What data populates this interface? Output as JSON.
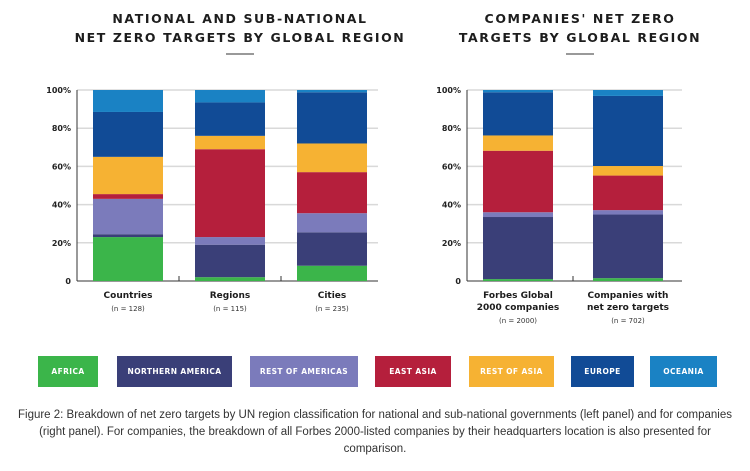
{
  "colors": {
    "Africa": "#3bb54a",
    "Northern America": "#3a3f78",
    "Rest of Americas": "#7b7bbb",
    "East Asia": "#b51f3c",
    "Rest of Asia": "#f6b233",
    "Europe": "#114b96",
    "Oceania": "#1a82c4"
  },
  "legend": [
    {
      "label": "AFRICA",
      "color": "#3bb54a"
    },
    {
      "label": "NORTHERN AMERICA",
      "color": "#3a3f78"
    },
    {
      "label": "REST OF AMERICAS",
      "color": "#7b7bbb"
    },
    {
      "label": "EAST ASIA",
      "color": "#b51f3c"
    },
    {
      "label": "REST OF ASIA",
      "color": "#f6b233"
    },
    {
      "label": "EUROPE",
      "color": "#114b96"
    },
    {
      "label": "OCEANIA",
      "color": "#1a82c4"
    }
  ],
  "caption": "Figure 2: Breakdown of net zero targets by UN region classification for national and sub-national governments (left panel) and for companies (right panel). For companies, the breakdown of all Forbes 2000-listed companies by their headquarters location is also presented for comparison.",
  "chart_data": [
    {
      "type": "bar",
      "stacked": true,
      "title_lines": [
        "NATIONAL AND SUB-NATIONAL",
        "NET ZERO TARGETS BY GLOBAL REGION"
      ],
      "categories": [
        "Countries",
        "Regions",
        "Cities"
      ],
      "category_notes": [
        "(n = 128)",
        "(n = 115)",
        "(n = 235)"
      ],
      "yticks": [
        "0",
        "20%",
        "40%",
        "60%",
        "80%",
        "100%"
      ],
      "ylim": [
        0,
        100
      ],
      "grid": true,
      "series": [
        {
          "name": "Africa",
          "values": [
            23,
            2,
            8
          ]
        },
        {
          "name": "Northern America",
          "values": [
            1.5,
            17,
            17.5
          ]
        },
        {
          "name": "Rest of Americas",
          "values": [
            18.5,
            4,
            10
          ]
        },
        {
          "name": "East Asia",
          "values": [
            2.5,
            46,
            21.5
          ]
        },
        {
          "name": "Rest of Asia",
          "values": [
            19.5,
            7,
            15
          ]
        },
        {
          "name": "Europe",
          "values": [
            23.5,
            17.5,
            26.8
          ]
        },
        {
          "name": "Oceania",
          "values": [
            11.5,
            6.5,
            1.2
          ]
        }
      ]
    },
    {
      "type": "bar",
      "stacked": true,
      "title_lines": [
        "COMPANIES' NET ZERO",
        "TARGETS BY GLOBAL REGION"
      ],
      "categories": [
        "Forbes Global 2000 companies",
        "Companies with net zero targets"
      ],
      "category_lines": [
        [
          "Forbes Global",
          "2000 companies"
        ],
        [
          "Companies with",
          "net zero targets"
        ]
      ],
      "category_notes": [
        "(n = 2000)",
        "(n = 702)"
      ],
      "yticks": [
        "0",
        "20%",
        "40%",
        "60%",
        "80%",
        "100%"
      ],
      "ylim": [
        0,
        100
      ],
      "grid": true,
      "series": [
        {
          "name": "Africa",
          "values": [
            1,
            1.5
          ]
        },
        {
          "name": "Northern America",
          "values": [
            32.5,
            33.3
          ]
        },
        {
          "name": "Rest of Americas",
          "values": [
            2.5,
            2.3
          ]
        },
        {
          "name": "East Asia",
          "values": [
            32.2,
            18.1
          ]
        },
        {
          "name": "Rest of Asia",
          "values": [
            8,
            5
          ]
        },
        {
          "name": "Europe",
          "values": [
            22.6,
            36.7
          ]
        },
        {
          "name": "Oceania",
          "values": [
            1.2,
            3.1
          ]
        }
      ]
    }
  ]
}
